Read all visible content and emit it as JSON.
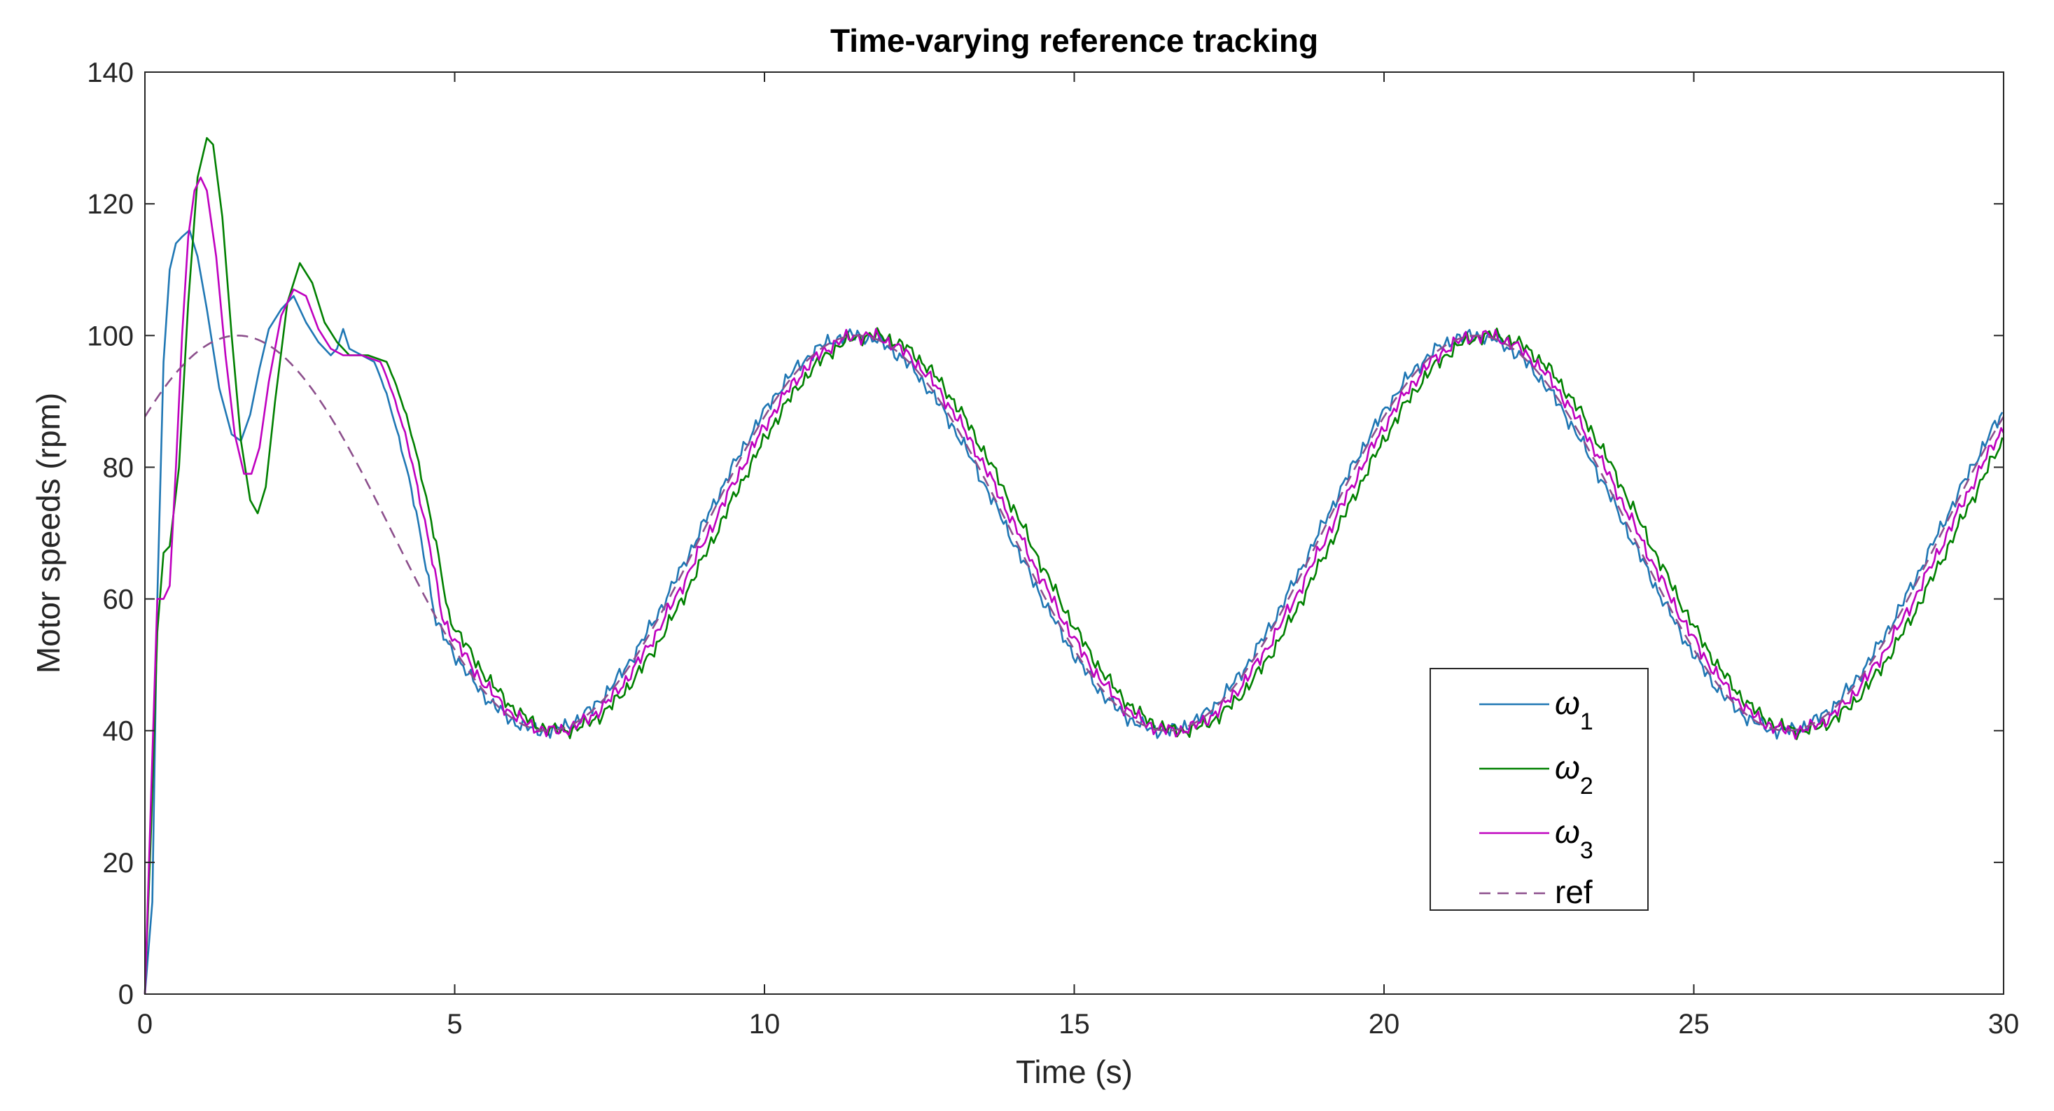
{
  "chart_data": {
    "type": "line",
    "title": "Time-varying reference tracking",
    "xlabel": "Time (s)",
    "ylabel": "Motor speeds (rpm)",
    "xlim": [
      0,
      30
    ],
    "ylim": [
      0,
      140
    ],
    "xticks": [
      0,
      5,
      10,
      15,
      20,
      25,
      30
    ],
    "yticks": [
      0,
      20,
      40,
      60,
      80,
      100,
      120,
      140
    ],
    "grid": false,
    "legend_position": "lower-right",
    "legend": [
      {
        "symbol": "ω",
        "subscript": "1",
        "label": "ω1"
      },
      {
        "symbol": "ω",
        "subscript": "2",
        "label": "ω2"
      },
      {
        "symbol": "ω",
        "subscript": "3",
        "label": "ω3"
      },
      {
        "symbol": "",
        "subscript": "",
        "label": "ref"
      }
    ],
    "reference": {
      "description": "sinusoid 70 + 30*sin(2*pi*t/10 + 0.63) for t >= 0",
      "offset": 70,
      "amplitude": 30,
      "period_s": 10,
      "phase_rad": 0.63
    },
    "series": [
      {
        "name": "ω1",
        "color": "#1f77b4",
        "style": "solid",
        "x": [
          0,
          0.12,
          0.2,
          0.3,
          0.4,
          0.5,
          0.6,
          0.72,
          0.85,
          1.0,
          1.2,
          1.4,
          1.55,
          1.7,
          1.85,
          2.0,
          2.2,
          2.4,
          2.6,
          2.8,
          3.0,
          3.1,
          3.2,
          3.3,
          3.5,
          3.7
        ],
        "y": [
          0,
          14,
          60,
          96,
          110,
          114,
          115,
          116,
          112,
          104,
          92,
          85,
          84,
          88,
          95,
          101,
          104,
          106,
          102,
          99,
          97,
          98,
          101,
          98,
          97,
          96
        ],
        "tail_lag_s": -0.05
      },
      {
        "name": "ω2",
        "color": "#008000",
        "style": "solid",
        "x": [
          0,
          0.1,
          0.2,
          0.3,
          0.4,
          0.55,
          0.7,
          0.85,
          1.0,
          1.1,
          1.25,
          1.4,
          1.55,
          1.7,
          1.82,
          1.95,
          2.1,
          2.3,
          2.5,
          2.7,
          2.9,
          3.1,
          3.3,
          3.6,
          3.9
        ],
        "y": [
          0,
          25,
          55,
          67,
          68,
          80,
          105,
          124,
          130,
          129,
          118,
          100,
          84,
          75,
          73,
          77,
          90,
          105,
          111,
          108,
          102,
          99,
          97,
          97,
          96
        ],
        "tail_lag_s": 0.22
      },
      {
        "name": "ω3",
        "color": "#bf00bf",
        "style": "solid",
        "x": [
          0,
          0.1,
          0.2,
          0.3,
          0.4,
          0.5,
          0.6,
          0.7,
          0.8,
          0.9,
          1.0,
          1.15,
          1.3,
          1.45,
          1.6,
          1.72,
          1.85,
          2.0,
          2.2,
          2.4,
          2.6,
          2.8,
          3.0,
          3.2,
          3.5,
          3.8
        ],
        "y": [
          0,
          30,
          60,
          60,
          62,
          80,
          100,
          115,
          122,
          124,
          122,
          112,
          97,
          85,
          79,
          79,
          83,
          93,
          103,
          107,
          106,
          101,
          98,
          97,
          97,
          96
        ],
        "tail_lag_s": 0.1
      },
      {
        "name": "ref",
        "color": "#8c4f8c",
        "style": "dashed",
        "from_reference": true
      }
    ]
  }
}
